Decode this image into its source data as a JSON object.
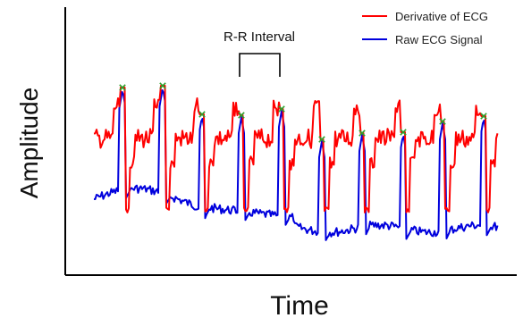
{
  "chart_data": {
    "type": "line",
    "title": "",
    "xlabel": "Time",
    "ylabel": "Amplitude",
    "x_ticks": [],
    "y_ticks": [],
    "grid": false,
    "legend": {
      "placement": "top-right"
    },
    "series": [
      {
        "name": "Derivative of ECG",
        "color": "#ff0000"
      },
      {
        "name": "Raw ECG Signal",
        "color": "#0000dd"
      }
    ],
    "annotation": "R-R Interval",
    "marker_color": "#2ca02c",
    "peak_count": 10
  }
}
